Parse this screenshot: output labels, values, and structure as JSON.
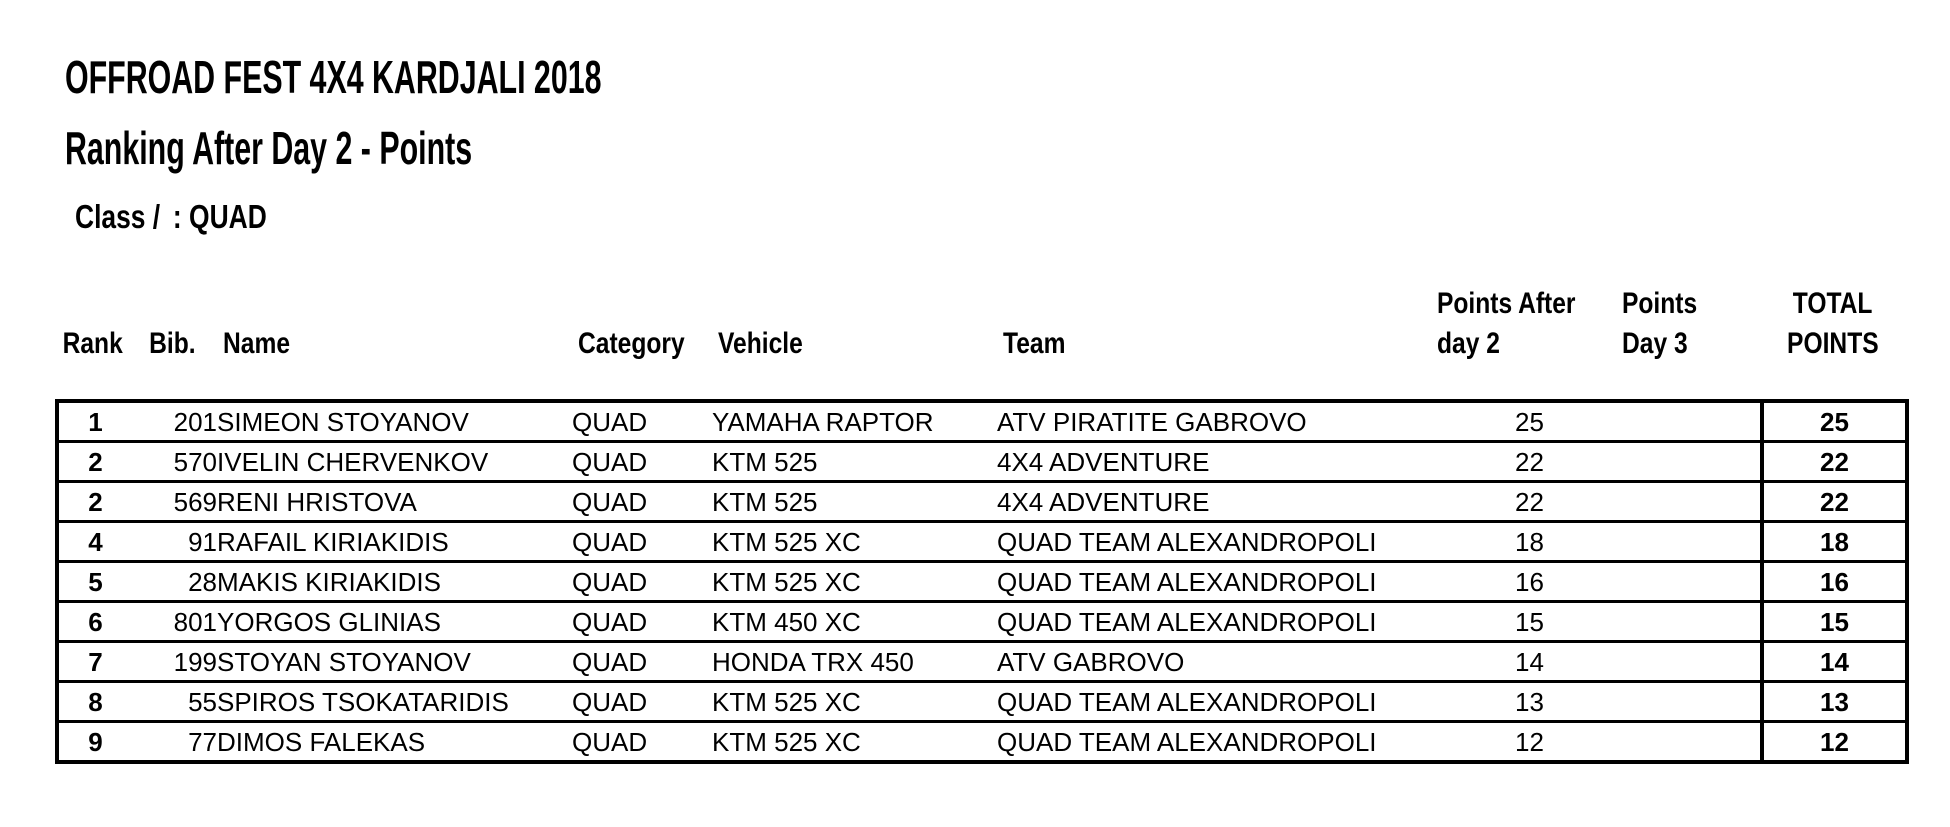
{
  "header": {
    "title": "OFFROAD FEST 4X4 KARDJALI 2018",
    "subtitle": "Ranking After Day 2 - Points"
  },
  "class_info": {
    "label": "Class /",
    "value": ": QUAD"
  },
  "table": {
    "columns": [
      {
        "key": "rank",
        "label": "Rank"
      },
      {
        "key": "bib",
        "label": "Bib."
      },
      {
        "key": "name",
        "label": "Name"
      },
      {
        "key": "category",
        "label": "Category"
      },
      {
        "key": "vehicle",
        "label": "Vehicle"
      },
      {
        "key": "team",
        "label": "Team"
      },
      {
        "key": "points_after_day2",
        "label_line1": "Points After",
        "label_line2": "day 2"
      },
      {
        "key": "points_day3",
        "label_line1": "Points",
        "label_line2": "Day 3"
      },
      {
        "key": "total_points",
        "label_line1": "TOTAL",
        "label_line2": "POINTS"
      }
    ],
    "rows": [
      {
        "rank": "1",
        "bib": "201",
        "name": "SIMEON STOYANOV",
        "category": "QUAD",
        "vehicle": "YAMAHA RAPTOR",
        "team": "ATV PIRATITE GABROVO",
        "points_after_day2": "25",
        "points_day3": "",
        "total_points": "25"
      },
      {
        "rank": "2",
        "bib": "570",
        "name": "IVELIN CHERVENKOV",
        "category": "QUAD",
        "vehicle": "KTM 525",
        "team": "4X4 ADVENTURE",
        "points_after_day2": "22",
        "points_day3": "",
        "total_points": "22"
      },
      {
        "rank": "2",
        "bib": "569",
        "name": "RENI HRISTOVA",
        "category": "QUAD",
        "vehicle": "KTM 525",
        "team": "4X4 ADVENTURE",
        "points_after_day2": "22",
        "points_day3": "",
        "total_points": "22"
      },
      {
        "rank": "4",
        "bib": "91",
        "name": "RAFAIL KIRIAKIDIS",
        "category": "QUAD",
        "vehicle": "KTM 525 XC",
        "team": "QUAD TEAM ALEXANDROPOLI",
        "points_after_day2": "18",
        "points_day3": "",
        "total_points": "18"
      },
      {
        "rank": "5",
        "bib": "28",
        "name": "MAKIS KIRIAKIDIS",
        "category": "QUAD",
        "vehicle": "KTM 525 XC",
        "team": "QUAD TEAM ALEXANDROPOLI",
        "points_after_day2": "16",
        "points_day3": "",
        "total_points": "16"
      },
      {
        "rank": "6",
        "bib": "801",
        "name": "YORGOS GLINIAS",
        "category": "QUAD",
        "vehicle": "KTM 450 XC",
        "team": "QUAD TEAM ALEXANDROPOLI",
        "points_after_day2": "15",
        "points_day3": "",
        "total_points": "15"
      },
      {
        "rank": "7",
        "bib": "199",
        "name": "STOYAN STOYANOV",
        "category": "QUAD",
        "vehicle": "HONDA TRX 450",
        "team": "ATV GABROVO",
        "points_after_day2": "14",
        "points_day3": "",
        "total_points": "14"
      },
      {
        "rank": "8",
        "bib": "55",
        "name": "SPIROS TSOKATARIDIS",
        "category": "QUAD",
        "vehicle": "KTM 525 XC",
        "team": "QUAD TEAM ALEXANDROPOLI",
        "points_after_day2": "13",
        "points_day3": "",
        "total_points": "13"
      },
      {
        "rank": "9",
        "bib": "77",
        "name": "DIMOS FALEKAS",
        "category": "QUAD",
        "vehicle": "KTM 525 XC",
        "team": "QUAD TEAM ALEXANDROPOLI",
        "points_after_day2": "12",
        "points_day3": "",
        "total_points": "12"
      }
    ]
  },
  "colors": {
    "text": "#000000",
    "background": "#ffffff",
    "border": "#000000"
  }
}
